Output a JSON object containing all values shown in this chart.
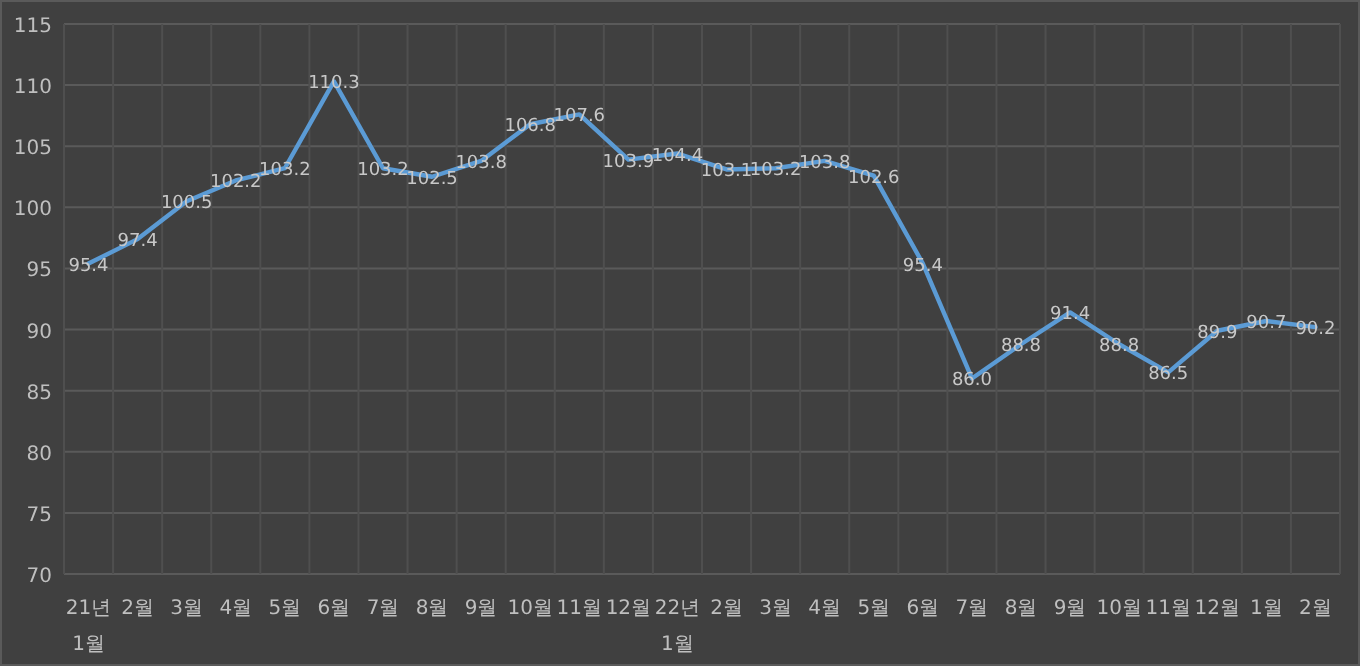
{
  "chart_data": {
    "type": "line",
    "categories": [
      "21년 1월",
      "2월",
      "3월",
      "4월",
      "5월",
      "6월",
      "7월",
      "8월",
      "9월",
      "10월",
      "11월",
      "12월",
      "22년 1월",
      "2월",
      "3월",
      "4월",
      "5월",
      "6월",
      "7월",
      "8월",
      "9월",
      "10월",
      "11월",
      "12월",
      "1월",
      "2월"
    ],
    "series": [
      {
        "color": "#5b9bd5",
        "values": [
          95.4,
          97.4,
          100.5,
          102.2,
          103.2,
          110.3,
          103.2,
          102.5,
          103.8,
          106.8,
          107.6,
          103.9,
          104.4,
          103.1,
          103.2,
          103.8,
          102.6,
          95.4,
          86.0,
          88.8,
          91.4,
          88.8,
          86.5,
          89.9,
          90.7,
          90.2
        ],
        "value_labels": [
          "95.4",
          "97.4",
          "100.5",
          "102.2",
          "103.2",
          "110.3",
          "103.2",
          "102.5",
          "103.8",
          "106.8",
          "107.6",
          "103.9",
          "104.4",
          "103.1",
          "103.2",
          "103.8",
          "102.6",
          "95.4",
          "86.0",
          "88.8",
          "91.4",
          "88.8",
          "86.5",
          "89.9",
          "90.7",
          "90.2"
        ]
      }
    ],
    "ylim": [
      70,
      115
    ],
    "yticks": [
      70,
      75,
      80,
      85,
      90,
      95,
      100,
      105,
      110,
      115
    ],
    "grid": true
  }
}
